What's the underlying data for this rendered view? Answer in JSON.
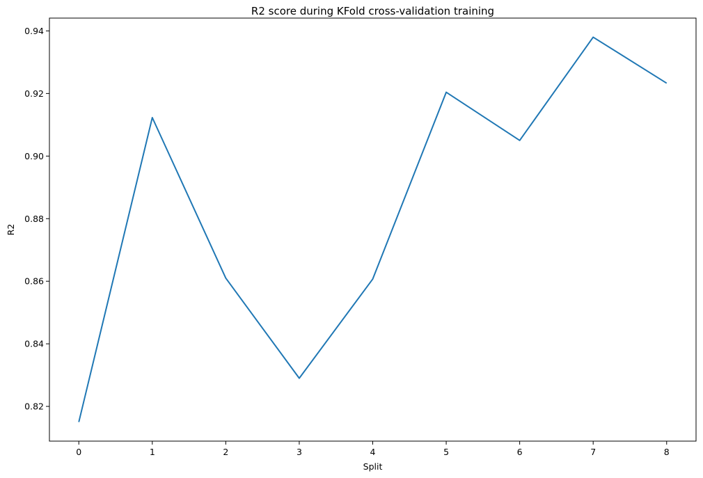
{
  "chart_data": {
    "type": "line",
    "title": "R2 score during KFold cross-validation training",
    "xlabel": "Split",
    "ylabel": "R2",
    "x": [
      0,
      1,
      2,
      3,
      4,
      5,
      6,
      7,
      8
    ],
    "series": [
      {
        "values": [
          0.815,
          0.9123,
          0.861,
          0.829,
          0.8607,
          0.9204,
          0.905,
          0.938,
          0.9233
        ],
        "color": "#1f77b4"
      }
    ],
    "xticks": [
      "0",
      "1",
      "2",
      "3",
      "4",
      "5",
      "6",
      "7",
      "8"
    ],
    "yticks": [
      "0.82",
      "0.84",
      "0.86",
      "0.88",
      "0.90",
      "0.92",
      "0.94"
    ],
    "ytick_values": [
      0.82,
      0.84,
      0.86,
      0.88,
      0.9,
      0.92,
      0.94
    ],
    "xlim": [
      -0.4,
      8.4
    ],
    "ylim": [
      0.8089,
      0.9441
    ],
    "grid": false,
    "legend": "none"
  }
}
